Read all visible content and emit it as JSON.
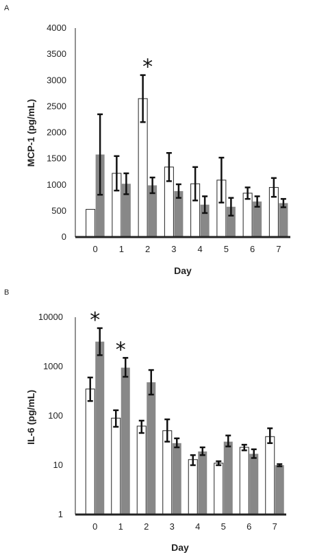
{
  "chart_data": [
    {
      "panel_label": "A",
      "type": "bar",
      "xlabel": "Day",
      "ylabel": "MCP-1 (pg/mL)",
      "yscale": "linear",
      "ylim": [
        0,
        4000
      ],
      "yticks": [
        "0",
        "500",
        "1000",
        "1500",
        "2000",
        "2500",
        "3000",
        "3500",
        "4000"
      ],
      "categories": [
        "0",
        "1",
        "2",
        "3",
        "4",
        "5",
        "6",
        "7"
      ],
      "series": [
        {
          "color": "#ffffff",
          "values": [
            530,
            1220,
            2650,
            1340,
            1020,
            1090,
            840,
            950
          ],
          "error_low": [
            0,
            330,
            450,
            270,
            320,
            430,
            110,
            180
          ],
          "error_high": [
            0,
            330,
            450,
            270,
            320,
            430,
            110,
            180
          ]
        },
        {
          "color": "#888888",
          "values": [
            1580,
            1020,
            990,
            880,
            620,
            580,
            680,
            650
          ],
          "error_low": [
            770,
            200,
            150,
            130,
            160,
            170,
            100,
            80
          ],
          "error_high": [
            770,
            200,
            150,
            130,
            160,
            170,
            100,
            80
          ]
        }
      ],
      "annotations": [
        {
          "text": "*",
          "category": "2"
        }
      ],
      "grid": false,
      "legend": "none"
    },
    {
      "panel_label": "B",
      "type": "bar",
      "xlabel": "Day",
      "ylabel": "IL-6 (pg/mL)",
      "yscale": "log",
      "ylim": [
        1,
        10000
      ],
      "yticks": [
        "1",
        "10",
        "100",
        "1000",
        "10000"
      ],
      "categories": [
        "0",
        "1",
        "2",
        "3",
        "4",
        "5",
        "6",
        "7"
      ],
      "series": [
        {
          "color": "#ffffff",
          "values": [
            350,
            90,
            62,
            50,
            13,
            11,
            23,
            38
          ],
          "error_low": [
            200,
            60,
            45,
            30,
            10,
            10,
            20,
            28
          ],
          "error_high": [
            600,
            130,
            80,
            85,
            16,
            12,
            26,
            56
          ]
        },
        {
          "color": "#888888",
          "values": [
            3200,
            950,
            480,
            28,
            19,
            30,
            17,
            10
          ],
          "error_low": [
            1700,
            620,
            270,
            23,
            16,
            24,
            14,
            9.5
          ],
          "error_high": [
            6000,
            1500,
            850,
            35,
            23,
            40,
            21,
            10.5
          ]
        }
      ],
      "annotations": [
        {
          "text": "*",
          "category": "0"
        },
        {
          "text": "*",
          "category": "1"
        }
      ],
      "grid": false,
      "legend": "none"
    }
  ]
}
